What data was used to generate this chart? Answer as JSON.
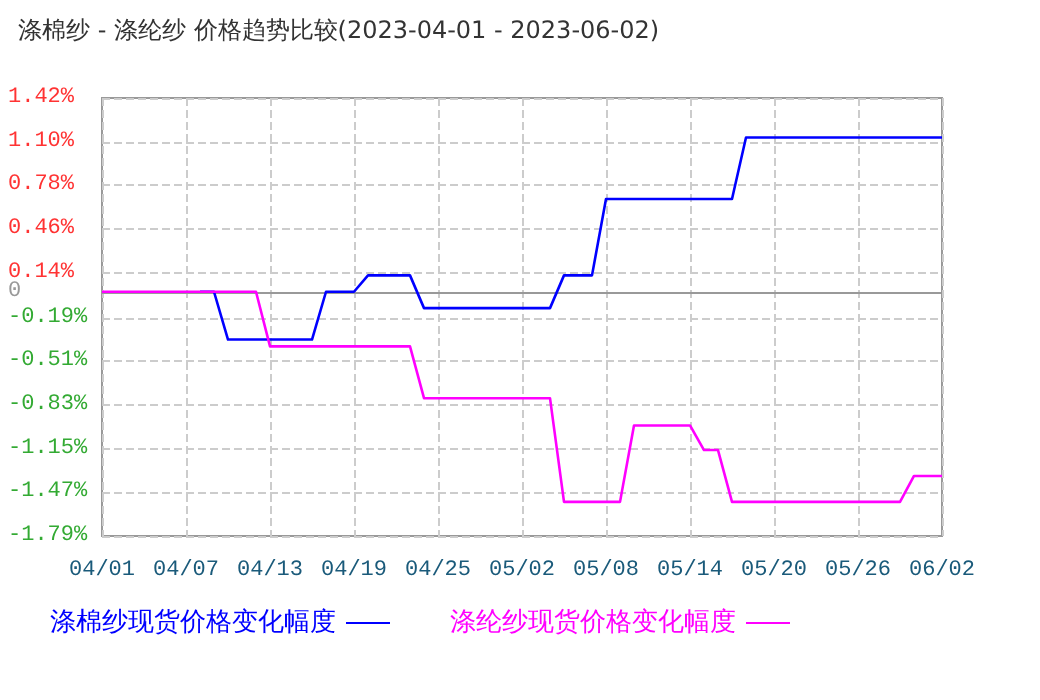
{
  "chart_data": {
    "type": "line",
    "title": "涤棉纱 - 涤纶纱 价格趋势比较(2023-04-01 - 2023-06-02)",
    "categories": [
      "04/01",
      null,
      null,
      null,
      null,
      null,
      "04/07",
      null,
      null,
      null,
      null,
      null,
      "04/13",
      null,
      null,
      null,
      null,
      null,
      "04/19",
      null,
      null,
      null,
      null,
      null,
      "04/25",
      null,
      null,
      null,
      null,
      null,
      "05/02",
      null,
      null,
      null,
      null,
      null,
      "05/08",
      null,
      null,
      null,
      null,
      null,
      "05/14",
      null,
      null,
      null,
      null,
      null,
      "05/20",
      null,
      null,
      null,
      null,
      null,
      "05/26",
      null,
      null,
      null,
      null,
      null,
      "06/02"
    ],
    "series": [
      {
        "name": "涤棉纱现货价格变化幅度",
        "color": "#0000ff",
        "values": [
          null,
          null,
          null,
          null,
          null,
          null,
          null,
          0,
          0,
          -0.35,
          -0.35,
          -0.35,
          -0.35,
          -0.35,
          -0.35,
          -0.35,
          0,
          0,
          0,
          0.12,
          0.12,
          0.12,
          0.12,
          -0.12,
          -0.12,
          -0.12,
          -0.12,
          -0.12,
          -0.12,
          -0.12,
          -0.12,
          -0.12,
          -0.12,
          0.12,
          0.12,
          0.12,
          0.68,
          0.68,
          0.68,
          0.68,
          0.68,
          0.68,
          0.68,
          0.68,
          0.68,
          0.68,
          1.13,
          1.13,
          1.13,
          1.13,
          1.13,
          1.13,
          1.13,
          1.13,
          1.13,
          1.13,
          1.13,
          1.13,
          1.13,
          1.13,
          1.13
        ]
      },
      {
        "name": "涤纶纱现货价格变化幅度",
        "color": "#ff00ff",
        "values": [
          0,
          0,
          0,
          0,
          0,
          0,
          0,
          0,
          0,
          0,
          0,
          0,
          -0.4,
          -0.4,
          -0.4,
          -0.4,
          -0.4,
          -0.4,
          -0.4,
          -0.4,
          -0.4,
          -0.4,
          -0.4,
          -0.78,
          -0.78,
          -0.78,
          -0.78,
          -0.78,
          -0.78,
          -0.78,
          -0.78,
          -0.78,
          -0.78,
          -1.54,
          -1.54,
          -1.54,
          -1.54,
          -1.54,
          -0.98,
          -0.98,
          -0.98,
          -0.98,
          -0.98,
          -1.16,
          -1.16,
          -1.54,
          -1.54,
          -1.54,
          -1.54,
          -1.54,
          -1.54,
          -1.54,
          -1.54,
          -1.54,
          -1.54,
          -1.54,
          -1.54,
          -1.54,
          -1.35,
          -1.35,
          -1.35
        ]
      }
    ],
    "ylim": [
      -1.79,
      1.42
    ],
    "yticks": [
      {
        "value": 1.42,
        "label": "1.42%"
      },
      {
        "value": 1.1,
        "label": "1.10%"
      },
      {
        "value": 0.78,
        "label": "0.78%"
      },
      {
        "value": 0.46,
        "label": "0.46%"
      },
      {
        "value": 0.14,
        "label": "0.14%"
      },
      {
        "value": 0,
        "label": "0"
      },
      {
        "value": -0.19,
        "label": "-0.19%"
      },
      {
        "value": -0.51,
        "label": "-0.51%"
      },
      {
        "value": -0.83,
        "label": "-0.83%"
      },
      {
        "value": -1.15,
        "label": "-1.15%"
      },
      {
        "value": -1.47,
        "label": "-1.47%"
      },
      {
        "value": -1.79,
        "label": "-1.79%"
      }
    ],
    "ref_lines": [
      {
        "axis": "y",
        "value": 0,
        "color": "#999999"
      }
    ],
    "grid": true,
    "legend": "bottom left",
    "marker": "none",
    "line_style": "solid"
  }
}
